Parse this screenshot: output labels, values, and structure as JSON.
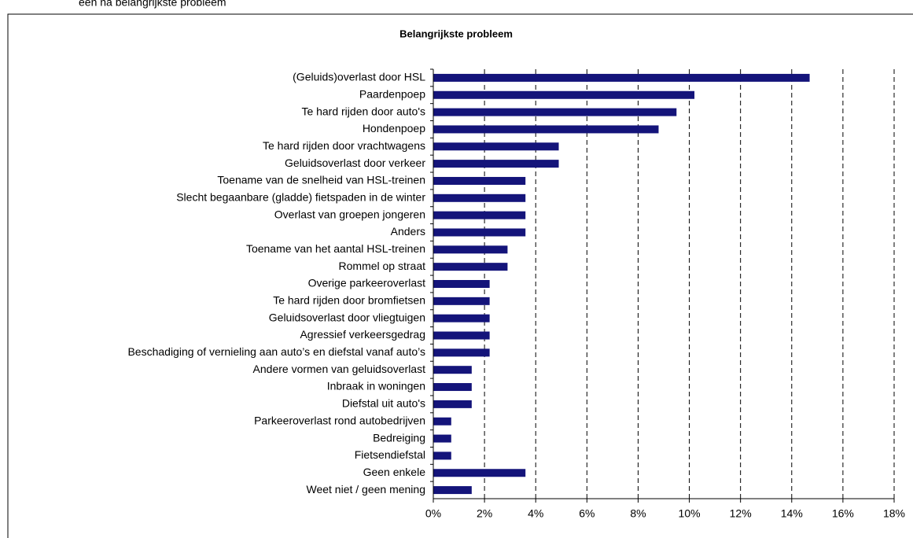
{
  "header_text": "een na belangrijkste probleem",
  "chart_data": {
    "type": "barh",
    "title": "Belangrijkste probleem",
    "categories": [
      "(Geluids)overlast door HSL",
      "Paardenpoep",
      "Te hard rijden door auto's",
      "Hondenpoep",
      "Te hard rijden door vrachtwagens",
      "Geluidsoverlast door verkeer",
      "Toename van de snelheid van HSL-treinen",
      "Slecht begaanbare (gladde) fietspaden in de winter",
      "Overlast van groepen jongeren",
      "Anders",
      "Toename van het aantal HSL-treinen",
      "Rommel op straat",
      "Overige parkeeroverlast",
      "Te hard rijden door bromfietsen",
      "Geluidsoverlast door vliegtuigen",
      "Agressief verkeersgedrag",
      "Beschadiging of vernieling aan auto’s en diefstal vanaf auto’s",
      "Andere vormen van geluidsoverlast",
      "Inbraak in woningen",
      "Diefstal uit auto's",
      "Parkeeroverlast rond autobedrijven",
      "Bedreiging",
      "Fietsendiefstal",
      "Geen enkele",
      "Weet niet / geen mening"
    ],
    "values": [
      14.7,
      10.2,
      9.5,
      8.8,
      4.9,
      4.9,
      3.6,
      3.6,
      3.6,
      3.6,
      2.9,
      2.9,
      2.2,
      2.2,
      2.2,
      2.2,
      2.2,
      1.5,
      1.5,
      1.5,
      0.7,
      0.7,
      0.7,
      3.6,
      1.5
    ],
    "color": "#14147a",
    "xlim": [
      0,
      18
    ],
    "xticks": [
      {
        "value": 0,
        "label": "0%"
      },
      {
        "value": 2,
        "label": "2%"
      },
      {
        "value": 4,
        "label": "4%"
      },
      {
        "value": 6,
        "label": "6%"
      },
      {
        "value": 8,
        "label": "8%"
      },
      {
        "value": 10,
        "label": "10%"
      },
      {
        "value": 12,
        "label": "12%"
      },
      {
        "value": 14,
        "label": "14%"
      },
      {
        "value": 16,
        "label": "16%"
      },
      {
        "value": 18,
        "label": "18%"
      }
    ],
    "grid": true
  }
}
